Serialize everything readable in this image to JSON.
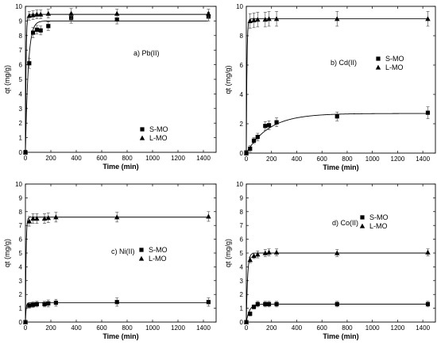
{
  "chart_data": [
    {
      "type": "scatter",
      "panel_label": "a) Pb(II)",
      "xlabel": "Time (min)",
      "ylabel": "qt (mg/g)",
      "xlim": [
        0,
        1500
      ],
      "ylim": [
        0,
        10
      ],
      "x_ticks": [
        0,
        200,
        400,
        600,
        800,
        1000,
        1200,
        1400
      ],
      "y_ticks": [
        0,
        1,
        2,
        3,
        4,
        5,
        6,
        7,
        8,
        9,
        10
      ],
      "legend_position": "right-middle",
      "series": [
        {
          "name": "S-MO",
          "marker": "square",
          "x": [
            0,
            30,
            60,
            90,
            120,
            180,
            360,
            720,
            1440
          ],
          "y": [
            0,
            6.1,
            8.2,
            8.4,
            8.35,
            8.65,
            9.2,
            9.1,
            9.3
          ],
          "err": [
            0.15,
            0.35,
            0.35,
            0.3,
            0.3,
            0.3,
            0.35,
            0.3,
            0.3
          ],
          "fit": {
            "qe": 9.0,
            "k": 0.045
          }
        },
        {
          "name": "L-MO",
          "marker": "triangle",
          "x": [
            0,
            30,
            60,
            90,
            120,
            180,
            360,
            720,
            1440
          ],
          "y": [
            0,
            9.35,
            9.4,
            9.45,
            9.45,
            9.5,
            9.5,
            9.5,
            9.5
          ],
          "err": [
            0.15,
            0.3,
            0.3,
            0.3,
            0.3,
            0.3,
            0.35,
            0.3,
            0.3
          ],
          "fit": {
            "qe": 9.45,
            "k": 0.2
          }
        }
      ]
    },
    {
      "type": "scatter",
      "panel_label": "b) Cd(II)",
      "xlabel": "Time (min)",
      "ylabel": "qt (mg/g)",
      "xlim": [
        0,
        1500
      ],
      "ylim": [
        0,
        10
      ],
      "x_ticks": [
        0,
        200,
        400,
        600,
        800,
        1000,
        1200,
        1400
      ],
      "y_ticks": [
        0,
        2,
        4,
        6,
        8,
        10
      ],
      "legend_position": "right-middle",
      "series": [
        {
          "name": "S-MO",
          "marker": "square",
          "x": [
            0,
            30,
            60,
            90,
            150,
            180,
            240,
            720,
            1440
          ],
          "y": [
            0.05,
            0.3,
            0.85,
            1.1,
            1.85,
            1.9,
            2.1,
            2.5,
            2.75
          ],
          "err": [
            0.1,
            0.2,
            0.2,
            0.25,
            0.3,
            0.3,
            0.3,
            0.3,
            0.4
          ],
          "fit": {
            "qe": 2.7,
            "k": 0.0055
          }
        },
        {
          "name": "L-MO",
          "marker": "triangle",
          "x": [
            0,
            30,
            60,
            90,
            150,
            180,
            240,
            720,
            1440
          ],
          "y": [
            0,
            9.0,
            9.05,
            9.1,
            9.1,
            9.15,
            9.15,
            9.15,
            9.15
          ],
          "err": [
            0.15,
            0.5,
            0.5,
            0.5,
            0.5,
            0.5,
            0.5,
            0.5,
            0.5
          ],
          "fit": {
            "qe": 9.15,
            "k": 0.2
          }
        }
      ]
    },
    {
      "type": "scatter",
      "panel_label": "c) Ni(II)",
      "xlabel": "Time (min)",
      "ylabel": "qt (mg/g)",
      "xlim": [
        0,
        1500
      ],
      "ylim": [
        0,
        10
      ],
      "x_ticks": [
        0,
        200,
        400,
        600,
        800,
        1000,
        1200,
        1400
      ],
      "y_ticks": [
        0,
        1,
        2,
        3,
        4,
        5,
        6,
        7,
        8,
        9,
        10
      ],
      "legend_position": "right-middle",
      "series": [
        {
          "name": "S-MO",
          "marker": "square",
          "x": [
            0,
            30,
            60,
            90,
            150,
            180,
            240,
            720,
            1440
          ],
          "y": [
            0,
            1.2,
            1.25,
            1.3,
            1.3,
            1.35,
            1.4,
            1.45,
            1.45
          ],
          "err": [
            0.1,
            0.2,
            0.2,
            0.2,
            0.2,
            0.25,
            0.25,
            0.3,
            0.3
          ],
          "fit": {
            "qe": 1.4,
            "k": 0.2
          }
        },
        {
          "name": "L-MO",
          "marker": "triangle",
          "x": [
            0,
            30,
            60,
            90,
            150,
            180,
            240,
            720,
            1440
          ],
          "y": [
            0,
            7.3,
            7.5,
            7.5,
            7.5,
            7.55,
            7.6,
            7.6,
            7.65
          ],
          "err": [
            0.1,
            0.35,
            0.35,
            0.35,
            0.35,
            0.35,
            0.35,
            0.35,
            0.35
          ],
          "fit": {
            "qe": 7.6,
            "k": 0.2
          }
        }
      ]
    },
    {
      "type": "scatter",
      "panel_label": "d) Co(II)",
      "xlabel": "Time (min)",
      "ylabel": "qt (mg/g)",
      "xlim": [
        0,
        1500
      ],
      "ylim": [
        0,
        10
      ],
      "x_ticks": [
        0,
        200,
        400,
        600,
        800,
        1000,
        1200,
        1400
      ],
      "y_ticks": [
        0,
        1,
        2,
        3,
        4,
        5,
        6,
        7,
        8,
        9,
        10
      ],
      "legend_position": "right-upper",
      "series": [
        {
          "name": "S-MO",
          "marker": "square",
          "x": [
            0,
            30,
            60,
            90,
            150,
            180,
            240,
            720,
            1440
          ],
          "y": [
            0,
            0.6,
            1.1,
            1.3,
            1.3,
            1.3,
            1.3,
            1.3,
            1.3
          ],
          "err": [
            0.1,
            0.15,
            0.15,
            0.2,
            0.2,
            0.2,
            0.2,
            0.2,
            0.2
          ],
          "fit": {
            "qe": 1.3,
            "k": 0.04
          }
        },
        {
          "name": "L-MO",
          "marker": "triangle",
          "x": [
            0,
            30,
            60,
            90,
            150,
            180,
            240,
            720,
            1440
          ],
          "y": [
            0,
            4.5,
            4.8,
            4.9,
            5.0,
            5.05,
            5.05,
            5.0,
            5.05
          ],
          "err": [
            0.1,
            0.2,
            0.2,
            0.25,
            0.25,
            0.25,
            0.25,
            0.25,
            0.25
          ],
          "fit": {
            "qe": 5.0,
            "k": 0.1
          }
        }
      ]
    }
  ]
}
